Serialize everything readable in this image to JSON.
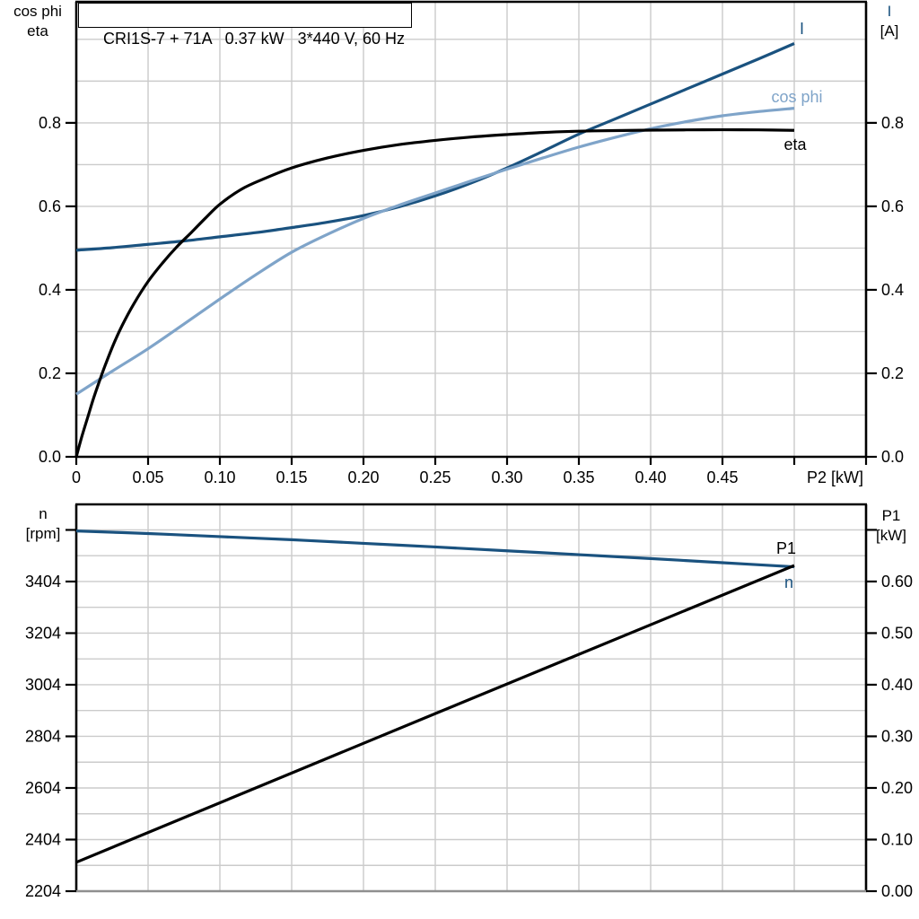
{
  "colors": {
    "dark_blue": "#1A527F",
    "light_blue": "#7FA4C9",
    "black": "#000000",
    "grid": "#CBCBCB",
    "bottom_border_gray": "#8F8F8F",
    "background": "#FFFFFF"
  },
  "chart_data": [
    {
      "type": "line",
      "title": "CRI1S-7 + 71A   0.37 kW   3*440 V, 60 Hz",
      "xlabel": "P2 [kW]",
      "left_axis_label_lines": [
        "cos phi",
        "eta"
      ],
      "right_axis_label_lines": [
        "I",
        "[A]"
      ],
      "xlim": [
        0,
        0.55
      ],
      "ylim": [
        0,
        1.09
      ],
      "grid": true,
      "grid_x_step": 0.05,
      "grid_y_step": 0.1,
      "xticks": [
        0,
        0.05,
        0.1,
        0.15,
        0.2,
        0.25,
        0.3,
        0.35,
        0.4,
        0.45
      ],
      "xtick_labels": [
        "0",
        "0.05",
        "0.10",
        "0.15",
        "0.20",
        "0.25",
        "0.30",
        "0.35",
        "0.40",
        "0.45"
      ],
      "xticks_unlabeled": [
        0.5,
        0.55
      ],
      "yticks": [
        0,
        0.2,
        0.4,
        0.6,
        0.8
      ],
      "ytick_labels": [
        "0.0",
        "0.2",
        "0.4",
        "0.6",
        "0.8"
      ],
      "series": [
        {
          "name": "I",
          "color_key": "dark_blue",
          "axis": "left",
          "points": [
            [
              0,
              0.495
            ],
            [
              0.025,
              0.501
            ],
            [
              0.05,
              0.509
            ],
            [
              0.075,
              0.517
            ],
            [
              0.1,
              0.527
            ],
            [
              0.125,
              0.537
            ],
            [
              0.15,
              0.549
            ],
            [
              0.175,
              0.562
            ],
            [
              0.2,
              0.578
            ],
            [
              0.225,
              0.599
            ],
            [
              0.25,
              0.625
            ],
            [
              0.275,
              0.656
            ],
            [
              0.3,
              0.692
            ],
            [
              0.325,
              0.732
            ],
            [
              0.35,
              0.773
            ],
            [
              0.375,
              0.809
            ],
            [
              0.4,
              0.845
            ],
            [
              0.425,
              0.881
            ],
            [
              0.45,
              0.917
            ],
            [
              0.475,
              0.953
            ],
            [
              0.5,
              0.99
            ]
          ]
        },
        {
          "name": "cos phi",
          "color_key": "light_blue",
          "axis": "left",
          "points": [
            [
              0,
              0.15
            ],
            [
              0.025,
              0.205
            ],
            [
              0.05,
              0.259
            ],
            [
              0.075,
              0.318
            ],
            [
              0.1,
              0.378
            ],
            [
              0.125,
              0.436
            ],
            [
              0.15,
              0.49
            ],
            [
              0.175,
              0.533
            ],
            [
              0.2,
              0.571
            ],
            [
              0.225,
              0.603
            ],
            [
              0.25,
              0.632
            ],
            [
              0.275,
              0.661
            ],
            [
              0.3,
              0.689
            ],
            [
              0.325,
              0.716
            ],
            [
              0.35,
              0.742
            ],
            [
              0.375,
              0.765
            ],
            [
              0.4,
              0.786
            ],
            [
              0.425,
              0.803
            ],
            [
              0.45,
              0.817
            ],
            [
              0.475,
              0.827
            ],
            [
              0.5,
              0.835
            ]
          ]
        },
        {
          "name": "eta",
          "color_key": "black",
          "axis": "left",
          "points": [
            [
              0,
              0
            ],
            [
              0.004,
              0.05
            ],
            [
              0.008,
              0.095
            ],
            [
              0.012,
              0.14
            ],
            [
              0.016,
              0.18
            ],
            [
              0.02,
              0.218
            ],
            [
              0.026,
              0.27
            ],
            [
              0.032,
              0.315
            ],
            [
              0.04,
              0.366
            ],
            [
              0.05,
              0.42
            ],
            [
              0.06,
              0.464
            ],
            [
              0.07,
              0.503
            ],
            [
              0.08,
              0.537
            ],
            [
              0.09,
              0.572
            ],
            [
              0.1,
              0.605
            ],
            [
              0.115,
              0.641
            ],
            [
              0.13,
              0.665
            ],
            [
              0.15,
              0.692
            ],
            [
              0.175,
              0.716
            ],
            [
              0.2,
              0.734
            ],
            [
              0.225,
              0.748
            ],
            [
              0.25,
              0.758
            ],
            [
              0.275,
              0.766
            ],
            [
              0.3,
              0.772
            ],
            [
              0.325,
              0.777
            ],
            [
              0.35,
              0.78
            ],
            [
              0.375,
              0.7815
            ],
            [
              0.4,
              0.7825
            ],
            [
              0.425,
              0.7832
            ],
            [
              0.45,
              0.7835
            ],
            [
              0.475,
              0.7832
            ],
            [
              0.5,
              0.782
            ]
          ]
        }
      ]
    },
    {
      "type": "line",
      "left_axis_label_lines": [
        "n",
        "[rpm]"
      ],
      "right_axis_label_lines": [
        "P1",
        "[kW]"
      ],
      "xlim": [
        0,
        0.55
      ],
      "ylim_left": [
        2204,
        3703
      ],
      "ylim_right": [
        0,
        0.7494
      ],
      "grid": true,
      "grid_x_step": 0.05,
      "grid_y_step_rpm": 100,
      "yticks_left": [
        2204,
        2404,
        2604,
        2804,
        3004,
        3204,
        3404
      ],
      "ytick_labels_left": [
        "2204",
        "2404",
        "2604",
        "2804",
        "3004",
        "3204",
        "3404"
      ],
      "yticks_left_unlabeled": [
        3604
      ],
      "yticks_right": [
        0,
        0.1,
        0.2,
        0.3,
        0.4,
        0.5,
        0.6
      ],
      "ytick_labels_right": [
        "0.00",
        "0.10",
        "0.20",
        "0.30",
        "0.40",
        "0.50",
        "0.60"
      ],
      "yticks_right_unlabeled": [
        0.7
      ],
      "series": [
        {
          "name": "n",
          "color_key": "dark_blue",
          "axis": "left",
          "points": [
            [
              0,
              3600
            ],
            [
              0.05,
              3590
            ],
            [
              0.1,
              3578
            ],
            [
              0.15,
              3566
            ],
            [
              0.2,
              3552
            ],
            [
              0.25,
              3538
            ],
            [
              0.3,
              3523
            ],
            [
              0.35,
              3508
            ],
            [
              0.4,
              3493
            ],
            [
              0.45,
              3477
            ],
            [
              0.5,
              3461
            ]
          ]
        },
        {
          "name": "P1",
          "color_key": "black",
          "axis": "right",
          "points": [
            [
              0,
              0.056
            ],
            [
              0.25,
              0.344
            ],
            [
              0.5,
              0.631
            ]
          ]
        }
      ]
    }
  ]
}
